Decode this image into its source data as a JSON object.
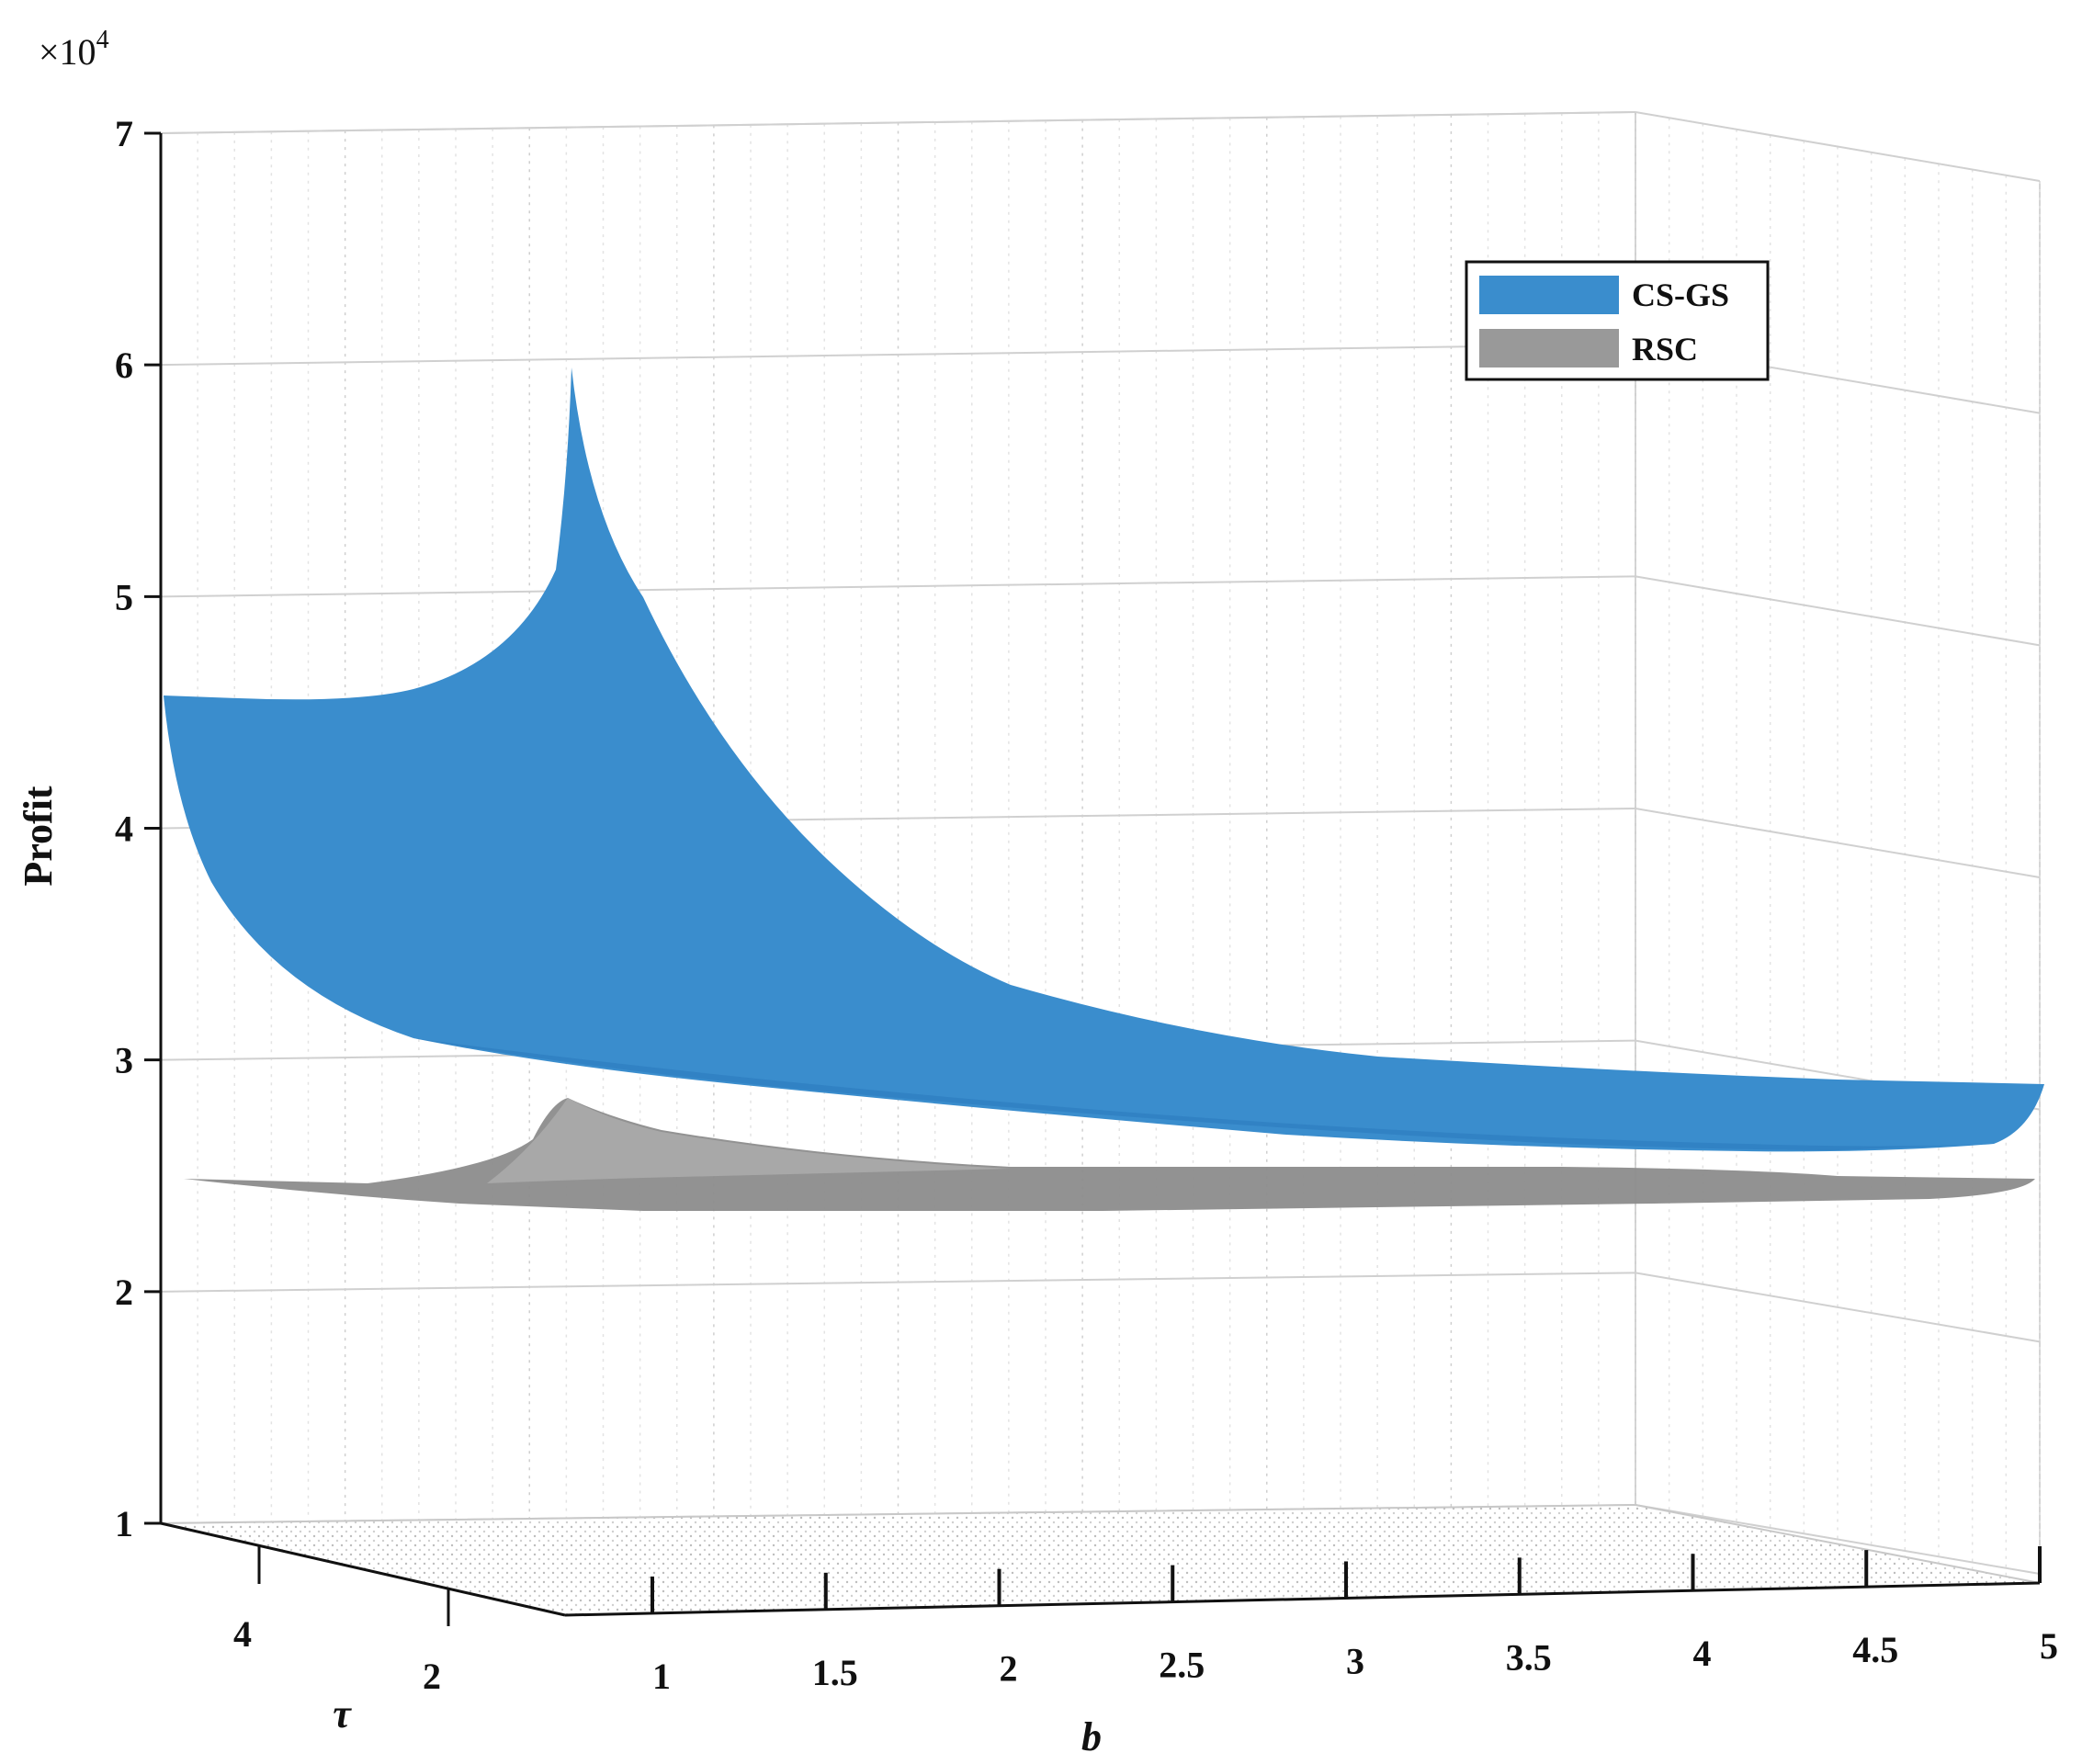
{
  "chart_data": {
    "type": "surface",
    "exponent_label": "×10",
    "exponent_power": "4",
    "zlabel": "Profit",
    "xlabel": "b",
    "ylabel": "τ",
    "z_ticks": [
      "1",
      "2",
      "3",
      "4",
      "5",
      "6",
      "7"
    ],
    "x_ticks": [
      "1",
      "1.5",
      "2",
      "2.5",
      "3",
      "3.5",
      "4",
      "4.5",
      "5"
    ],
    "y_ticks": [
      "4",
      "2"
    ],
    "zlim": [
      1,
      7
    ],
    "xlim": [
      1,
      5
    ],
    "grid": true,
    "legend_position": "top-right",
    "series": [
      {
        "name": "CS-GS",
        "color": "#3a8dcd",
        "front_edge": {
          "b": [
            1.0,
            1.5,
            2.0,
            2.5,
            3.0,
            3.5,
            4.0,
            4.5,
            5.0
          ],
          "profit": [
            4.55,
            3.3,
            2.95,
            2.85,
            2.75,
            2.68,
            2.6,
            2.55,
            2.75
          ]
        },
        "back_edge": {
          "b": [
            1.0,
            1.4,
            1.6,
            1.8,
            2.0,
            2.5,
            3.0,
            3.5,
            4.0,
            4.5,
            5.0
          ],
          "profit": [
            4.55,
            4.6,
            5.95,
            4.6,
            3.95,
            3.4,
            3.15,
            3.0,
            2.95,
            2.9,
            2.9
          ]
        },
        "peak_profit": 5.95
      },
      {
        "name": "RSC",
        "color": "#999999",
        "edge": {
          "b": [
            1.0,
            1.5,
            2.0,
            2.5,
            3.0,
            3.5,
            4.0,
            4.5,
            5.0
          ],
          "profit": [
            2.5,
            2.45,
            2.45,
            2.45,
            2.45,
            2.45,
            2.45,
            2.45,
            2.5
          ]
        },
        "peak_profit": 2.85
      }
    ]
  }
}
